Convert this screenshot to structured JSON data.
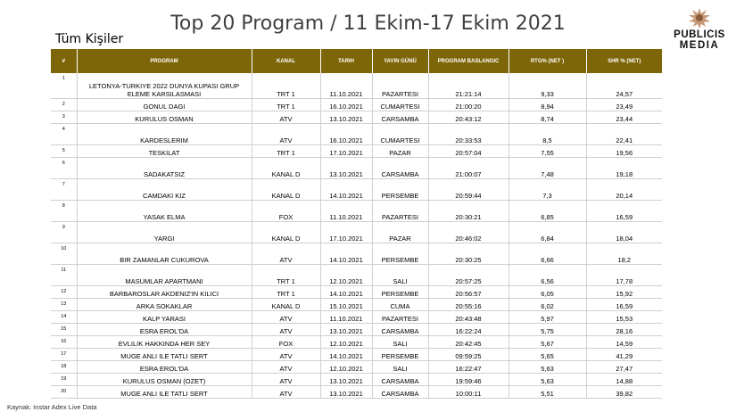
{
  "title": "Top 20 Program / 11 Ekim-17 Ekim 2021",
  "subtitle": "Tüm Kişiler",
  "logo": {
    "line1": "PUBLICIS",
    "line2": "MEDIA"
  },
  "columns": [
    "#",
    "PROGRAM",
    "KANAL",
    "TARIH",
    "YAYIN GÜNÜ",
    "PROGRAM BASLANGIC",
    "RTG% (NET )",
    "SHR % (NET)"
  ],
  "rows": [
    {
      "n": "1",
      "program": "LETONYA-TURKIYE 2022 DUNYA KUPASI GRUP ELEME KARSILASMASI",
      "kanal": "TRT 1",
      "tarih": "11.10.2021",
      "gun": "PAZARTESI",
      "baslangic": "21:21:14",
      "rtg": "9,33",
      "shr": "24,57"
    },
    {
      "n": "2",
      "program": "GONUL DAGI",
      "kanal": "TRT 1",
      "tarih": "16.10.2021",
      "gun": "CUMARTESI",
      "baslangic": "21:00:20",
      "rtg": "8,94",
      "shr": "23,49"
    },
    {
      "n": "3",
      "program": "KURULUS OSMAN",
      "kanal": "ATV",
      "tarih": "13.10.2021",
      "gun": "CARSAMBA",
      "baslangic": "20:43:12",
      "rtg": "8,74",
      "shr": "23,44"
    },
    {
      "n": "4",
      "program": "KARDESLERIM",
      "kanal": "ATV",
      "tarih": "16.10.2021",
      "gun": "CUMARTESI",
      "baslangic": "20:33:53",
      "rtg": "8,5",
      "shr": "22,41"
    },
    {
      "n": "5",
      "program": "TESKILAT",
      "kanal": "TRT 1",
      "tarih": "17.10.2021",
      "gun": "PAZAR",
      "baslangic": "20:57:04",
      "rtg": "7,55",
      "shr": "19,56"
    },
    {
      "n": "6",
      "program": "SADAKATSIZ",
      "kanal": "KANAL D",
      "tarih": "13.10.2021",
      "gun": "CARSAMBA",
      "baslangic": "21:00:07",
      "rtg": "7,48",
      "shr": "19,18"
    },
    {
      "n": "7",
      "program": "CAMDAKI KIZ",
      "kanal": "KANAL D",
      "tarih": "14.10.2021",
      "gun": "PERSEMBE",
      "baslangic": "20:59:44",
      "rtg": "7,3",
      "shr": "20,14"
    },
    {
      "n": "8",
      "program": "YASAK ELMA",
      "kanal": "FOX",
      "tarih": "11.10.2021",
      "gun": "PAZARTESI",
      "baslangic": "20:30:21",
      "rtg": "6,85",
      "shr": "16,59"
    },
    {
      "n": "9",
      "program": "YARGI",
      "kanal": "KANAL D",
      "tarih": "17.10.2021",
      "gun": "PAZAR",
      "baslangic": "20:46:02",
      "rtg": "6,84",
      "shr": "18,04"
    },
    {
      "n": "10",
      "program": "BIR ZAMANLAR CUKUROVA",
      "kanal": "ATV",
      "tarih": "14.10.2021",
      "gun": "PERSEMBE",
      "baslangic": "20:30:25",
      "rtg": "6,66",
      "shr": "18,2"
    },
    {
      "n": "11",
      "program": "MASUMLAR APARTMANI",
      "kanal": "TRT 1",
      "tarih": "12.10.2021",
      "gun": "SALI",
      "baslangic": "20:57:25",
      "rtg": "6,56",
      "shr": "17,78"
    },
    {
      "n": "12",
      "program": "BARBAROSLAR AKDENIZ'IN KILICI",
      "kanal": "TRT 1",
      "tarih": "14.10.2021",
      "gun": "PERSEMBE",
      "baslangic": "20:56:57",
      "rtg": "6,05",
      "shr": "15,92"
    },
    {
      "n": "13",
      "program": "ARKA SOKAKLAR",
      "kanal": "KANAL D",
      "tarih": "15.10.2021",
      "gun": "CUMA",
      "baslangic": "20:55:16",
      "rtg": "6,02",
      "shr": "16,59"
    },
    {
      "n": "14",
      "program": "KALP YARASI",
      "kanal": "ATV",
      "tarih": "11.10.2021",
      "gun": "PAZARTESI",
      "baslangic": "20:43:48",
      "rtg": "5,97",
      "shr": "15,53"
    },
    {
      "n": "15",
      "program": "ESRA EROL'DA",
      "kanal": "ATV",
      "tarih": "13.10.2021",
      "gun": "CARSAMBA",
      "baslangic": "16:22:24",
      "rtg": "5,75",
      "shr": "28,16"
    },
    {
      "n": "16",
      "program": "EVLILIK HAKKINDA HER SEY",
      "kanal": "FOX",
      "tarih": "12.10.2021",
      "gun": "SALI",
      "baslangic": "20:42:45",
      "rtg": "5,67",
      "shr": "14,59"
    },
    {
      "n": "17",
      "program": "MUGE ANLI ILE TATLI SERT",
      "kanal": "ATV",
      "tarih": "14.10.2021",
      "gun": "PERSEMBE",
      "baslangic": "09:59:25",
      "rtg": "5,65",
      "shr": "41,29"
    },
    {
      "n": "18",
      "program": "ESRA EROL'DA",
      "kanal": "ATV",
      "tarih": "12.10.2021",
      "gun": "SALI",
      "baslangic": "16:22:47",
      "rtg": "5,63",
      "shr": "27,47"
    },
    {
      "n": "19",
      "program": "KURULUS OSMAN (OZET)",
      "kanal": "ATV",
      "tarih": "13.10.2021",
      "gun": "CARSAMBA",
      "baslangic": "19:59:46",
      "rtg": "5,63",
      "shr": "14,88"
    },
    {
      "n": "20",
      "program": "MUGE ANLI ILE TATLI SERT",
      "kanal": "ATV",
      "tarih": "13.10.2021",
      "gun": "CARSAMBA",
      "baslangic": "10:00:11",
      "rtg": "5,51",
      "shr": "39,82"
    }
  ],
  "source": "Kaynak: Instar  Adex Live Data"
}
